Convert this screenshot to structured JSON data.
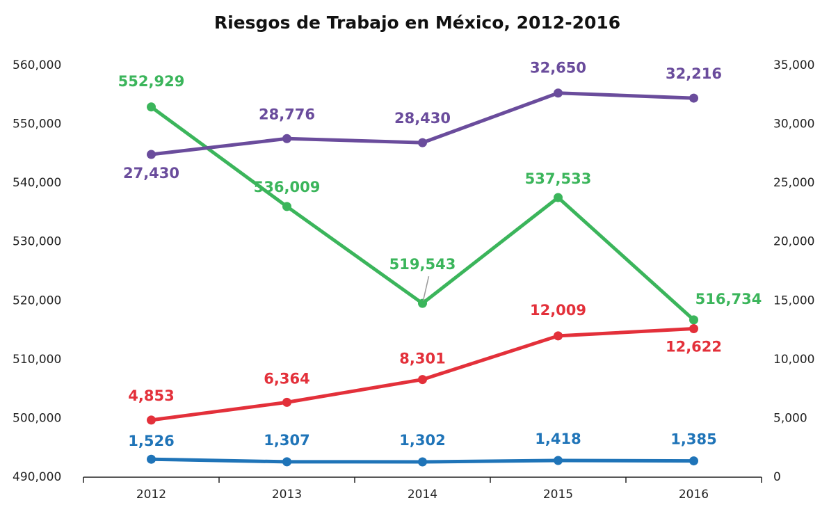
{
  "chart_data": {
    "type": "line",
    "title": "Riesgos de Trabajo en México, 2012-2016",
    "categories": [
      "2012",
      "2013",
      "2014",
      "2015",
      "2016"
    ],
    "ylim": [
      490000,
      560000
    ],
    "yticks": [
      {
        "value": 490000,
        "label": "490,000"
      },
      {
        "value": 500000,
        "label": "500,000"
      },
      {
        "value": 510000,
        "label": "510,000"
      },
      {
        "value": 520000,
        "label": "520,000"
      },
      {
        "value": 530000,
        "label": "530,000"
      },
      {
        "value": 540000,
        "label": "540,000"
      },
      {
        "value": 550000,
        "label": "550,000"
      },
      {
        "value": 560000,
        "label": "560,000"
      }
    ],
    "y2lim": [
      0,
      35000
    ],
    "y2ticks": [
      0,
      {
        "value": 5000,
        "label": "5,000"
      },
      {
        "value": 10000,
        "label": "10,000"
      },
      {
        "value": 15000,
        "label": "15,000"
      },
      {
        "value": 20000,
        "label": "20,000"
      },
      {
        "value": 25000,
        "label": "25,000"
      },
      {
        "value": 30000,
        "label": "30,000"
      },
      {
        "value": 35000,
        "label": "35,000"
      }
    ],
    "series": [
      {
        "color": "#3bb55b",
        "values": [
          552929,
          536009,
          519543,
          537533,
          516734
        ],
        "value_labels": [
          "552,929",
          "536,009",
          "519,543",
          "537,533",
          "516,734"
        ]
      },
      {
        "color": "#6a4c9c",
        "axis": "y2",
        "values": [
          27430,
          28776,
          28430,
          32650,
          32216
        ],
        "value_labels": [
          "27,430",
          "28,776",
          "28,430",
          "32,650",
          "32,216"
        ]
      },
      {
        "color": "#e3303a",
        "axis": "y2",
        "values": [
          4853,
          6364,
          8301,
          12009,
          12622
        ],
        "value_labels": [
          "4,853",
          "6,364",
          "8,301",
          "12,009",
          "12,622"
        ]
      },
      {
        "color": "#1f74b8",
        "axis": "y2",
        "values": [
          1526,
          1307,
          1302,
          1418,
          1385
        ],
        "value_labels": [
          "1,526",
          "1,307",
          "1,302",
          "1,418",
          "1,385"
        ]
      }
    ]
  }
}
